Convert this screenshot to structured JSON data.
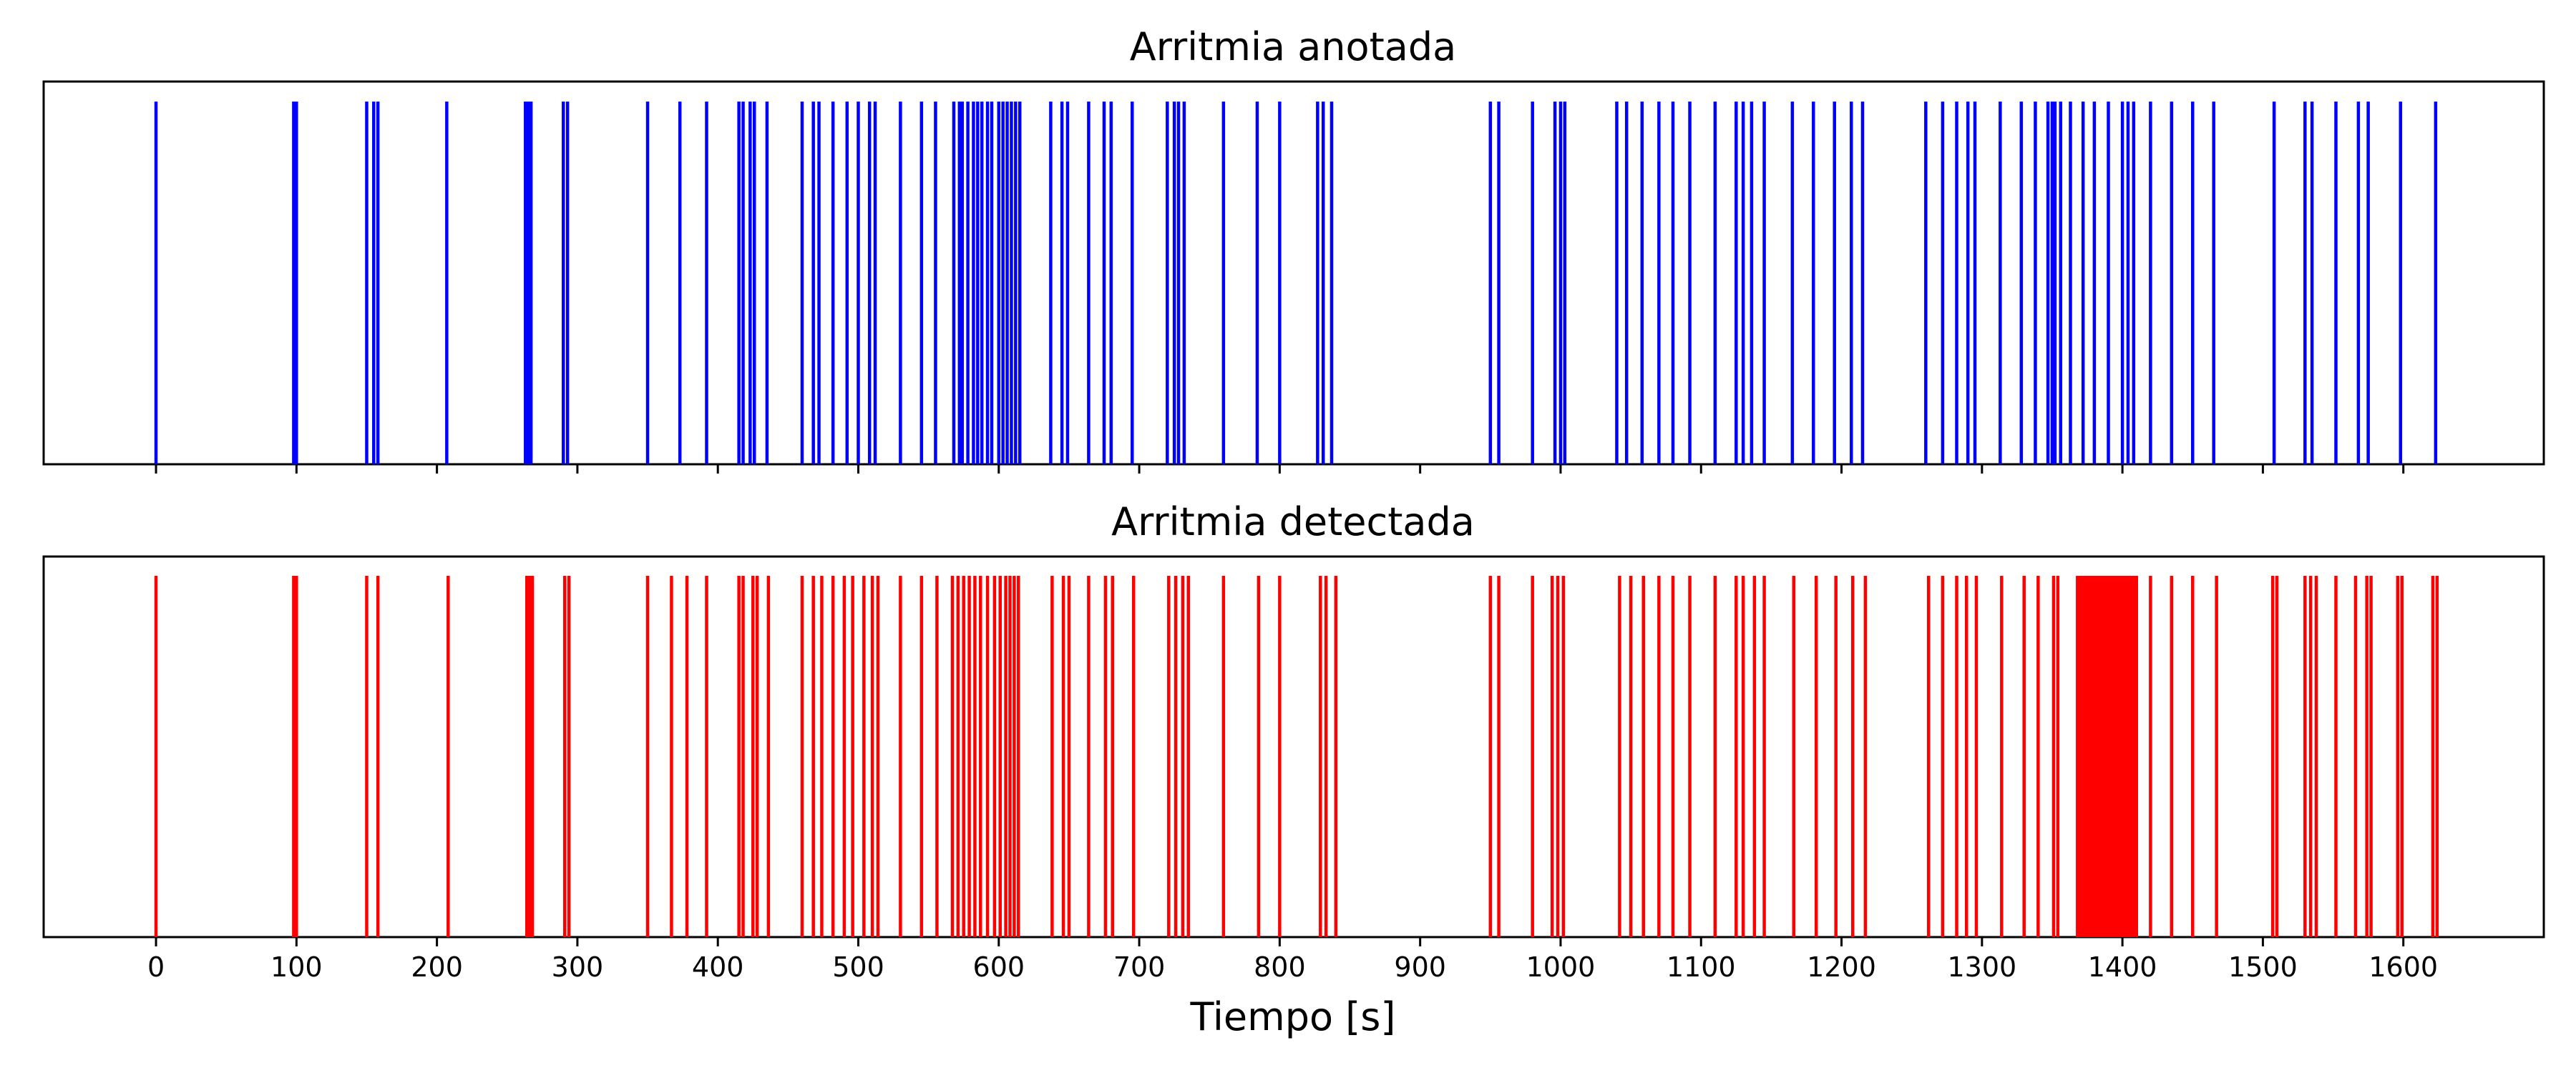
{
  "chart_data": [
    {
      "type": "event",
      "title": "Arritmia anotada",
      "color": "#0000ff",
      "xlim": [
        -80,
        1700
      ],
      "ylim": [
        0,
        1
      ],
      "y_axis_visible": false,
      "x_tick_labels_visible": false,
      "events": [
        0,
        98,
        100,
        150,
        155,
        158,
        207,
        263,
        265,
        267,
        290,
        293,
        350,
        373,
        392,
        415,
        418,
        423,
        426,
        435,
        460,
        468,
        472,
        482,
        492,
        500,
        508,
        512,
        530,
        545,
        555,
        568,
        572,
        574,
        578,
        582,
        585,
        588,
        592,
        595,
        600,
        603,
        606,
        609,
        612,
        615,
        637,
        645,
        649,
        664,
        675,
        680,
        695,
        720,
        725,
        728,
        732,
        760,
        784,
        800,
        827,
        831,
        837,
        950,
        956,
        980,
        996,
        1000,
        1003,
        1040,
        1047,
        1058,
        1070,
        1080,
        1092,
        1110,
        1125,
        1130,
        1136,
        1145,
        1165,
        1180,
        1195,
        1207,
        1215,
        1260,
        1272,
        1282,
        1290,
        1295,
        1313,
        1328,
        1338,
        1347,
        1350,
        1352,
        1356,
        1363,
        1372,
        1380,
        1390,
        1400,
        1404,
        1408,
        1420,
        1435,
        1450,
        1465,
        1508,
        1530,
        1535,
        1552,
        1568,
        1575,
        1598,
        1623
      ]
    },
    {
      "type": "event",
      "title": "Arritmia detectada",
      "color": "#ff0000",
      "xlim": [
        -80,
        1700
      ],
      "ylim": [
        0,
        1
      ],
      "y_axis_visible": false,
      "xlabel": "Tiempo [s]",
      "xticks": [
        0,
        100,
        200,
        300,
        400,
        500,
        600,
        700,
        800,
        900,
        1000,
        1100,
        1200,
        1300,
        1400,
        1500,
        1600
      ],
      "events": [
        0,
        98,
        100,
        150,
        158,
        208,
        264,
        266,
        268,
        291,
        294,
        350,
        367,
        378,
        392,
        415,
        418,
        425,
        428,
        436,
        460,
        468,
        474,
        482,
        490,
        496,
        504,
        510,
        514,
        530,
        545,
        556,
        567,
        571,
        575,
        579,
        583,
        587,
        592,
        597,
        601,
        605,
        608,
        611,
        614,
        638,
        646,
        650,
        664,
        676,
        681,
        696,
        721,
        726,
        731,
        735,
        760,
        785,
        800,
        829,
        833,
        840,
        950,
        956,
        980,
        994,
        998,
        1002,
        1042,
        1050,
        1059,
        1070,
        1080,
        1092,
        1110,
        1125,
        1130,
        1138,
        1145,
        1166,
        1182,
        1196,
        1208,
        1217,
        1262,
        1272,
        1282,
        1289,
        1296,
        1314,
        1330,
        1340,
        1351,
        1354,
        1368,
        1370,
        1372,
        1374,
        1376,
        1378,
        1380,
        1382,
        1384,
        1386,
        1388,
        1390,
        1392,
        1394,
        1396,
        1398,
        1400,
        1402,
        1404,
        1406,
        1408,
        1410,
        1420,
        1435,
        1450,
        1467,
        1507,
        1510,
        1530,
        1534,
        1538,
        1552,
        1566,
        1574,
        1577,
        1596,
        1599,
        1621,
        1624
      ]
    }
  ]
}
